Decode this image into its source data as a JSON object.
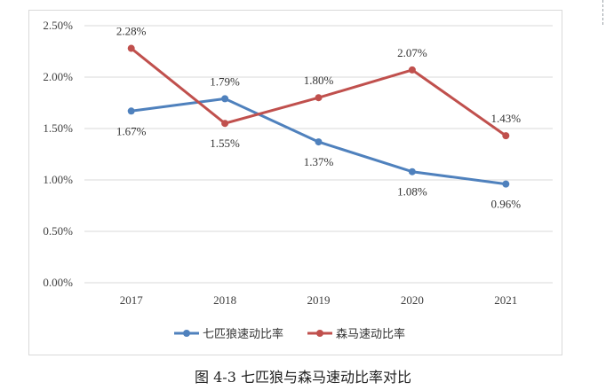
{
  "chart_data": {
    "type": "line",
    "title": "",
    "xlabel": "",
    "ylabel": "",
    "categories": [
      "2017",
      "2018",
      "2019",
      "2020",
      "2021"
    ],
    "y_ticks": [
      "0.00%",
      "0.50%",
      "1.00%",
      "1.50%",
      "2.00%",
      "2.50%"
    ],
    "ylim": [
      0,
      2.5
    ],
    "grid": true,
    "legend_position": "bottom",
    "series": [
      {
        "name": "七匹狼速动比率",
        "color": "#4f81bd",
        "values": [
          1.67,
          1.79,
          1.37,
          1.08,
          0.96
        ],
        "labels": [
          "1.67%",
          "1.79%",
          "1.37%",
          "1.08%",
          "0.96%"
        ]
      },
      {
        "name": "森马速动比率",
        "color": "#c0504d",
        "values": [
          2.28,
          1.55,
          1.8,
          2.07,
          1.43
        ],
        "labels": [
          "2.28%",
          "1.55%",
          "1.80%",
          "2.07%",
          "1.43%"
        ]
      }
    ]
  },
  "caption": "图 4-3 七匹狼与森马速动比率对比"
}
